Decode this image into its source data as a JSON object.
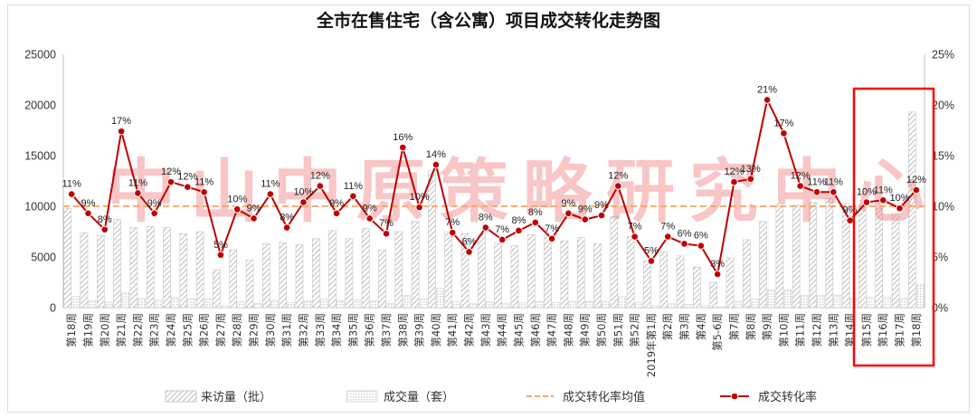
{
  "watermark": "中山中原策略研究中心",
  "colors": {
    "rate_line": "#c00000",
    "avg_line": "#f4a460",
    "highlight": "#ff0000",
    "watermark": "#f07878",
    "visits_hatch": "#bdbdbd",
    "deals_hatch": "#d2d2d2"
  },
  "chart_data": {
    "type": "bar",
    "title": "全市在售住宅（含公寓）项目成交转化走势图",
    "categories": [
      "第18周",
      "第19周",
      "第20周",
      "第21周",
      "第22周",
      "第23周",
      "第24周",
      "第25周",
      "第26周",
      "第27周",
      "第28周",
      "第29周",
      "第30周",
      "第31周",
      "第32周",
      "第33周",
      "第34周",
      "第35周",
      "第36周",
      "第37周",
      "第38周",
      "第39周",
      "第40周",
      "第41周",
      "第42周",
      "第43周",
      "第44周",
      "第45周",
      "第46周",
      "第47周",
      "第48周",
      "第49周",
      "第50周",
      "第51周",
      "第52周",
      "2019年第1周",
      "第2周",
      "第3周",
      "第4周",
      "第5-6周",
      "第7周",
      "第8周",
      "第9周",
      "第10周",
      "第11周",
      "第12周",
      "第13周",
      "第14周",
      "第15周",
      "第16周",
      "第17周",
      "第18周"
    ],
    "y_left": {
      "ylim": [
        0,
        25000
      ],
      "ticks": [
        0,
        5000,
        10000,
        15000,
        20000,
        25000
      ],
      "tick_labels": [
        "0",
        "5000",
        "10000",
        "15000",
        "20000",
        "25000"
      ]
    },
    "y_right": {
      "ylim": [
        0,
        25
      ],
      "ticks": [
        0,
        5,
        10,
        15,
        20,
        25
      ],
      "tick_labels": [
        "0%",
        "5%",
        "10%",
        "15%",
        "20%",
        "25%"
      ]
    },
    "series": [
      {
        "name": "来访量（批）",
        "type": "bar",
        "axis": "left",
        "values": [
          9800,
          7400,
          7100,
          8700,
          7900,
          8000,
          7900,
          7300,
          7500,
          3700,
          5700,
          4700,
          6300,
          6400,
          6200,
          6800,
          7600,
          6800,
          7800,
          5700,
          7500,
          8500,
          13500,
          7500,
          7300,
          7300,
          6400,
          6100,
          7200,
          7100,
          6600,
          6900,
          6300,
          9000,
          7000,
          4600,
          5500,
          5100,
          4000,
          2500,
          4900,
          6700,
          8500,
          10200,
          10100,
          10400,
          10800,
          10300,
          9900,
          9800,
          9300,
          19300
        ]
      },
      {
        "name": "成交量（套）",
        "type": "bar",
        "axis": "left",
        "values": [
          1100,
          690,
          550,
          1510,
          890,
          740,
          980,
          870,
          860,
          190,
          550,
          410,
          710,
          510,
          640,
          820,
          710,
          750,
          690,
          420,
          1190,
          840,
          1900,
          560,
          400,
          580,
          430,
          460,
          600,
          480,
          610,
          600,
          570,
          1080,
          490,
          210,
          390,
          320,
          240,
          80,
          610,
          850,
          1740,
          1750,
          1210,
          1190,
          1230,
          890,
          1030,
          1040,
          910,
          2240
        ]
      },
      {
        "name": "成交转化率",
        "type": "line",
        "axis": "right",
        "values": [
          11.2,
          9.3,
          7.7,
          17.4,
          11.3,
          9.3,
          12.4,
          11.9,
          11.4,
          5.2,
          9.7,
          8.8,
          11.2,
          7.9,
          10.4,
          12.0,
          9.3,
          11.0,
          8.8,
          7.3,
          15.8,
          9.9,
          14.1,
          7.4,
          5.5,
          7.9,
          6.7,
          7.6,
          8.4,
          6.8,
          9.3,
          8.7,
          9.1,
          12.0,
          7.0,
          4.6,
          7.0,
          6.3,
          6.1,
          3.3,
          12.4,
          12.7,
          20.5,
          17.2,
          12.0,
          11.4,
          11.4,
          8.6,
          10.4,
          10.6,
          9.8,
          11.6
        ],
        "data_labels": [
          "11%",
          "9%",
          "8%",
          "17%",
          "11%",
          "9%",
          "12%",
          "12%",
          "11%",
          "5%",
          "10%",
          "9%",
          "11%",
          "8%",
          "10%",
          "12%",
          "9%",
          "11%",
          "9%",
          "7%",
          "16%",
          "10%",
          "14%",
          "7%",
          "6%",
          "8%",
          "7%",
          "8%",
          "8%",
          "7%",
          "9%",
          "9%",
          "9%",
          "12%",
          "7%",
          "5%",
          "7%",
          "6%",
          "6%",
          "3%",
          "12%",
          "13%",
          "21%",
          "17%",
          "12%",
          "11%",
          "11%",
          "9%",
          "10%",
          "11%",
          "10%",
          "12%"
        ]
      },
      {
        "name": "成交转化率均值",
        "type": "line",
        "axis": "right",
        "value": 10
      }
    ],
    "grid": false,
    "legend_position": "bottom"
  }
}
